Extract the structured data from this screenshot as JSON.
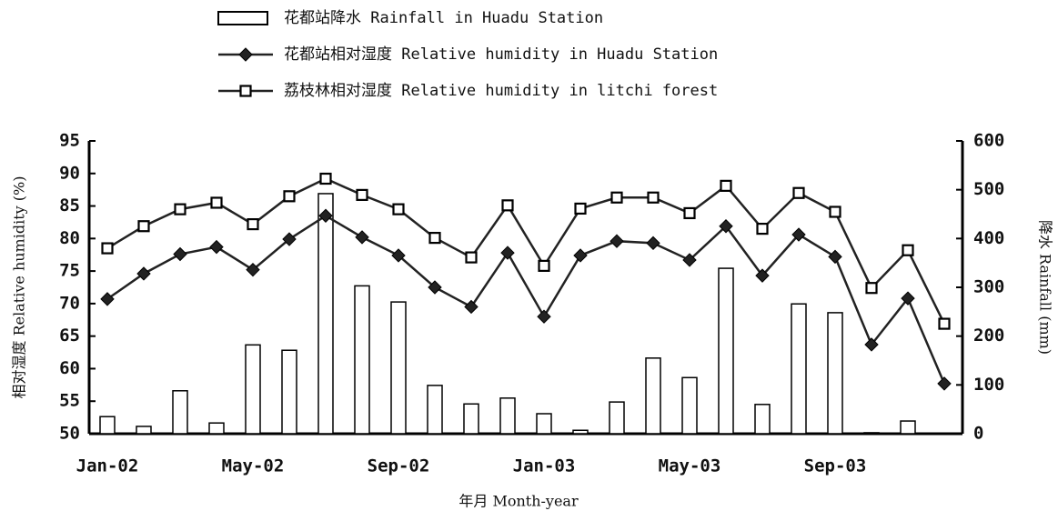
{
  "chart_data": {
    "type": "bar_line",
    "categories": [
      "Jan-02",
      null,
      null,
      null,
      "May-02",
      null,
      null,
      null,
      "Sep-02",
      null,
      null,
      null,
      "Jan-03",
      null,
      null,
      null,
      "May-03",
      null,
      null,
      null,
      "Sep-03",
      null,
      null,
      null
    ],
    "x_label": "年月 Month-year",
    "y_label": "相对湿度 Relative humidity (%)",
    "y2_label": "降水 Rainfall (mm)",
    "ylim": [
      50,
      95
    ],
    "yticks": [
      50,
      55,
      60,
      65,
      70,
      75,
      80,
      85,
      90,
      95
    ],
    "y2lim": [
      0,
      600
    ],
    "y2ticks": [
      0,
      100,
      200,
      300,
      400,
      500,
      600
    ],
    "series": [
      {
        "name": "花都站降水 Rainfall in Huadu Station",
        "type": "bar",
        "axis": "y2",
        "color": "#ffffff",
        "values": [
          35,
          15,
          88,
          22,
          182,
          171,
          492,
          303,
          270,
          99,
          61,
          73,
          41,
          7,
          65,
          155,
          115,
          339,
          60,
          266,
          248,
          2,
          26,
          0
        ]
      },
      {
        "name": "花都站相对湿度 Relative humidity in Huadu Station",
        "type": "line",
        "marker": "diamond",
        "color": "#222222",
        "values": [
          70.7,
          74.6,
          77.6,
          78.7,
          75.2,
          79.9,
          83.5,
          80.2,
          77.4,
          72.5,
          69.5,
          77.8,
          68.0,
          77.4,
          79.6,
          79.3,
          76.7,
          81.9,
          74.3,
          80.6,
          77.2,
          63.7,
          70.8,
          57.7
        ]
      },
      {
        "name": "荔枝林相对湿度 Relative humidity in litchi forest",
        "type": "line",
        "marker": "square",
        "color": "#222222",
        "values": [
          78.5,
          81.9,
          84.5,
          85.5,
          82.2,
          86.5,
          89.2,
          86.7,
          84.5,
          80.1,
          77.1,
          85.1,
          75.8,
          84.6,
          86.3,
          86.3,
          83.9,
          88.1,
          81.5,
          87.0,
          84.1,
          72.4,
          78.2,
          66.9
        ]
      }
    ]
  }
}
